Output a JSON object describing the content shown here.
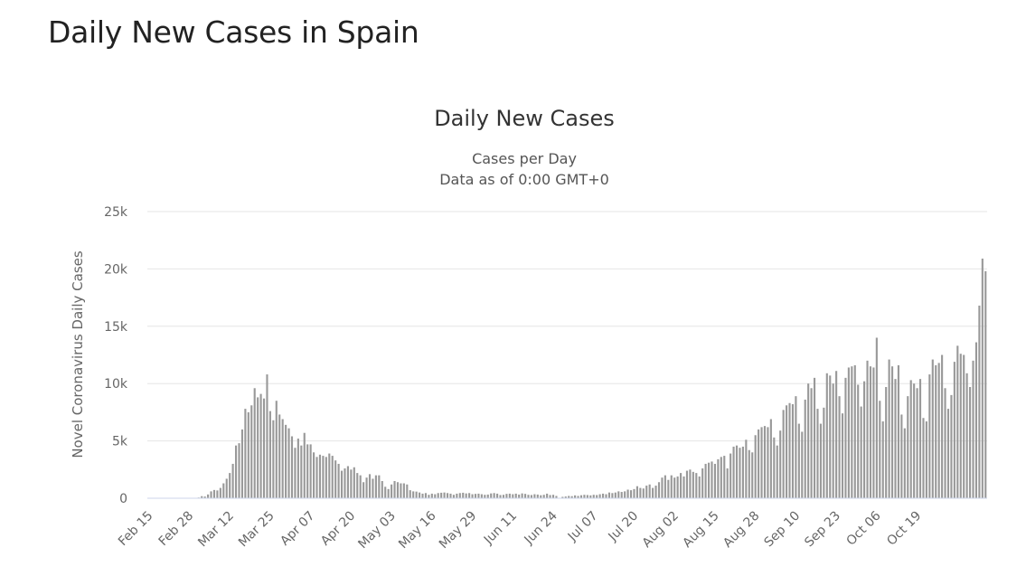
{
  "page": {
    "heading": "Daily New Cases in Spain"
  },
  "chart_data": {
    "type": "bar",
    "title": "Daily New Cases",
    "subtitle_lines": [
      "Cases per Day",
      "Data as of 0:00 GMT+0"
    ],
    "ylabel": "Novel Coronavirus Daily Cases",
    "xlabel": "",
    "ylim": [
      0,
      25000
    ],
    "y_ticks": [
      0,
      5000,
      10000,
      15000,
      20000,
      25000
    ],
    "y_tick_labels": [
      "0",
      "5k",
      "10k",
      "15k",
      "20k",
      "25k"
    ],
    "x_tick_labels": [
      "Feb 15",
      "Feb 28",
      "Mar 12",
      "Mar 25",
      "Apr 07",
      "Apr 20",
      "May 03",
      "May 16",
      "May 29",
      "Jun 11",
      "Jun 24",
      "Jul 07",
      "Jul 20",
      "Aug 02",
      "Aug 15",
      "Aug 28",
      "Sep 10",
      "Sep 23",
      "Oct 06",
      "Oct 19"
    ],
    "x_tick_every": 13,
    "grid": true,
    "legend": false,
    "bar_color": "#999999",
    "series": [
      {
        "values": [
          0,
          0,
          0,
          0,
          0,
          0,
          0,
          0,
          0,
          0,
          0,
          0,
          2,
          0,
          10,
          20,
          60,
          180,
          150,
          330,
          600,
          720,
          680,
          900,
          1300,
          1700,
          2200,
          3000,
          4600,
          4800,
          6000,
          7800,
          7500,
          8100,
          9600,
          8800,
          9100,
          8700,
          10800,
          7600,
          6800,
          8500,
          7300,
          6900,
          6400,
          6100,
          5400,
          4400,
          5200,
          4600,
          5700,
          4700,
          4700,
          4000,
          3600,
          3800,
          3700,
          3600,
          3900,
          3700,
          3300,
          3000,
          2400,
          2600,
          2800,
          2500,
          2700,
          2200,
          2000,
          1400,
          1800,
          2100,
          1700,
          2000,
          2000,
          1500,
          1000,
          800,
          1200,
          1500,
          1400,
          1300,
          1300,
          1200,
          700,
          600,
          580,
          500,
          400,
          450,
          300,
          400,
          350,
          450,
          480,
          500,
          450,
          400,
          300,
          400,
          450,
          480,
          420,
          450,
          350,
          380,
          400,
          350,
          300,
          320,
          420,
          450,
          400,
          280,
          300,
          380,
          400,
          350,
          400,
          320,
          420,
          380,
          300,
          280,
          350,
          320,
          260,
          300,
          400,
          280,
          300,
          200,
          0,
          120,
          150,
          200,
          180,
          250,
          200,
          260,
          300,
          280,
          250,
          300,
          280,
          350,
          400,
          350,
          500,
          450,
          500,
          600,
          550,
          600,
          750,
          700,
          800,
          1050,
          900,
          850,
          1100,
          1200,
          900,
          1100,
          1400,
          1800,
          2000,
          1600,
          2000,
          1800,
          1900,
          2200,
          1900,
          2400,
          2500,
          2300,
          2200,
          1900,
          2600,
          3000,
          3100,
          3200,
          3000,
          3400,
          3600,
          3700,
          2600,
          3900,
          4500,
          4600,
          4400,
          4500,
          5100,
          4200,
          4000,
          5500,
          6000,
          6200,
          6300,
          6200,
          6900,
          5300,
          4600,
          5900,
          7700,
          8100,
          8300,
          8200,
          8900,
          6500,
          5800,
          8600,
          10000,
          9600,
          10500,
          7800,
          6500,
          7900,
          10900,
          10700,
          10000,
          11100,
          8900,
          7400,
          10500,
          11400,
          11500,
          11600,
          9900,
          8000,
          10200,
          12000,
          11500,
          11400,
          14000,
          8500,
          6700,
          9700,
          12100,
          11500,
          10400,
          11600,
          7300,
          6100,
          8900,
          10300,
          10000,
          9600,
          10400,
          7000,
          6700,
          10800,
          12100,
          11600,
          11800,
          12500,
          9600,
          7800,
          9000,
          11900,
          13300,
          12600,
          12500,
          10900,
          9700,
          12000,
          13600,
          16800,
          20900,
          19800
        ]
      }
    ]
  }
}
